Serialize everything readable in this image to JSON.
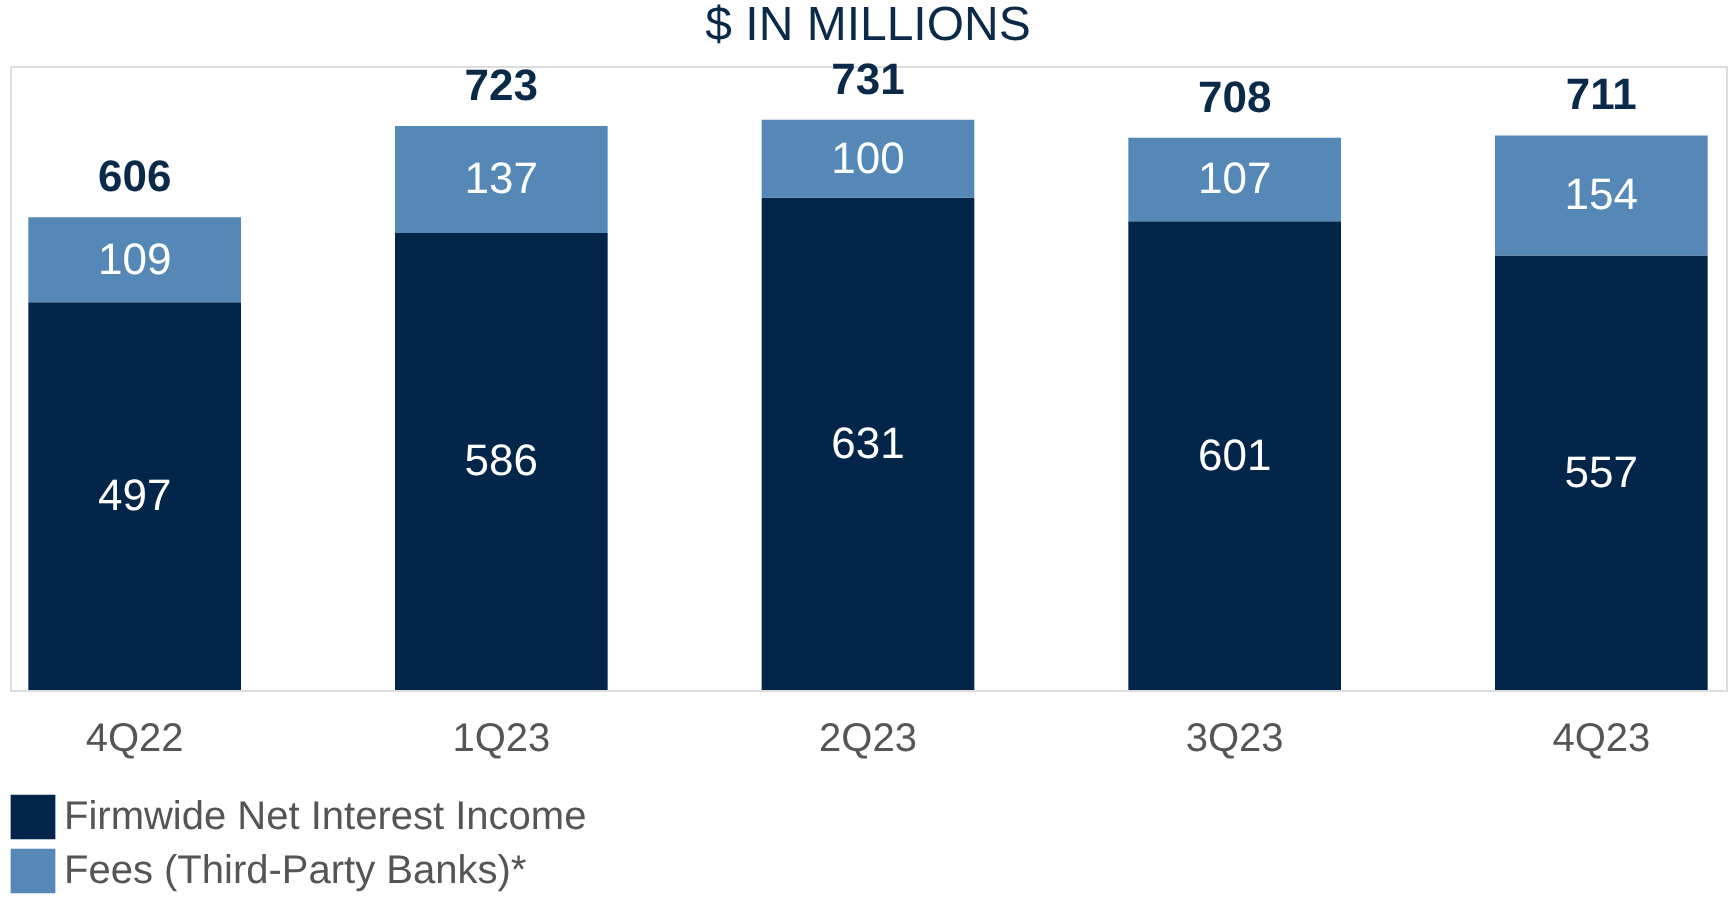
{
  "chart_data": {
    "type": "bar",
    "title": "$ IN MILLIONS",
    "categories": [
      "4Q22",
      "1Q23",
      "2Q23",
      "3Q23",
      "4Q23"
    ],
    "stacked": true,
    "data_labels": true,
    "legend": "bottom",
    "grid": false,
    "tick_labels": "x",
    "series": [
      {
        "name": "Firmwide Net Interest Income",
        "color": "#03254a",
        "values": [
          497,
          586,
          631,
          601,
          557
        ]
      },
      {
        "name": "Fees (Third-Party Banks)*",
        "color": "#5588b6",
        "values": [
          109,
          137,
          100,
          107,
          154
        ]
      }
    ],
    "totals": [
      "606",
      "723",
      "731",
      "708",
      "711"
    ]
  }
}
